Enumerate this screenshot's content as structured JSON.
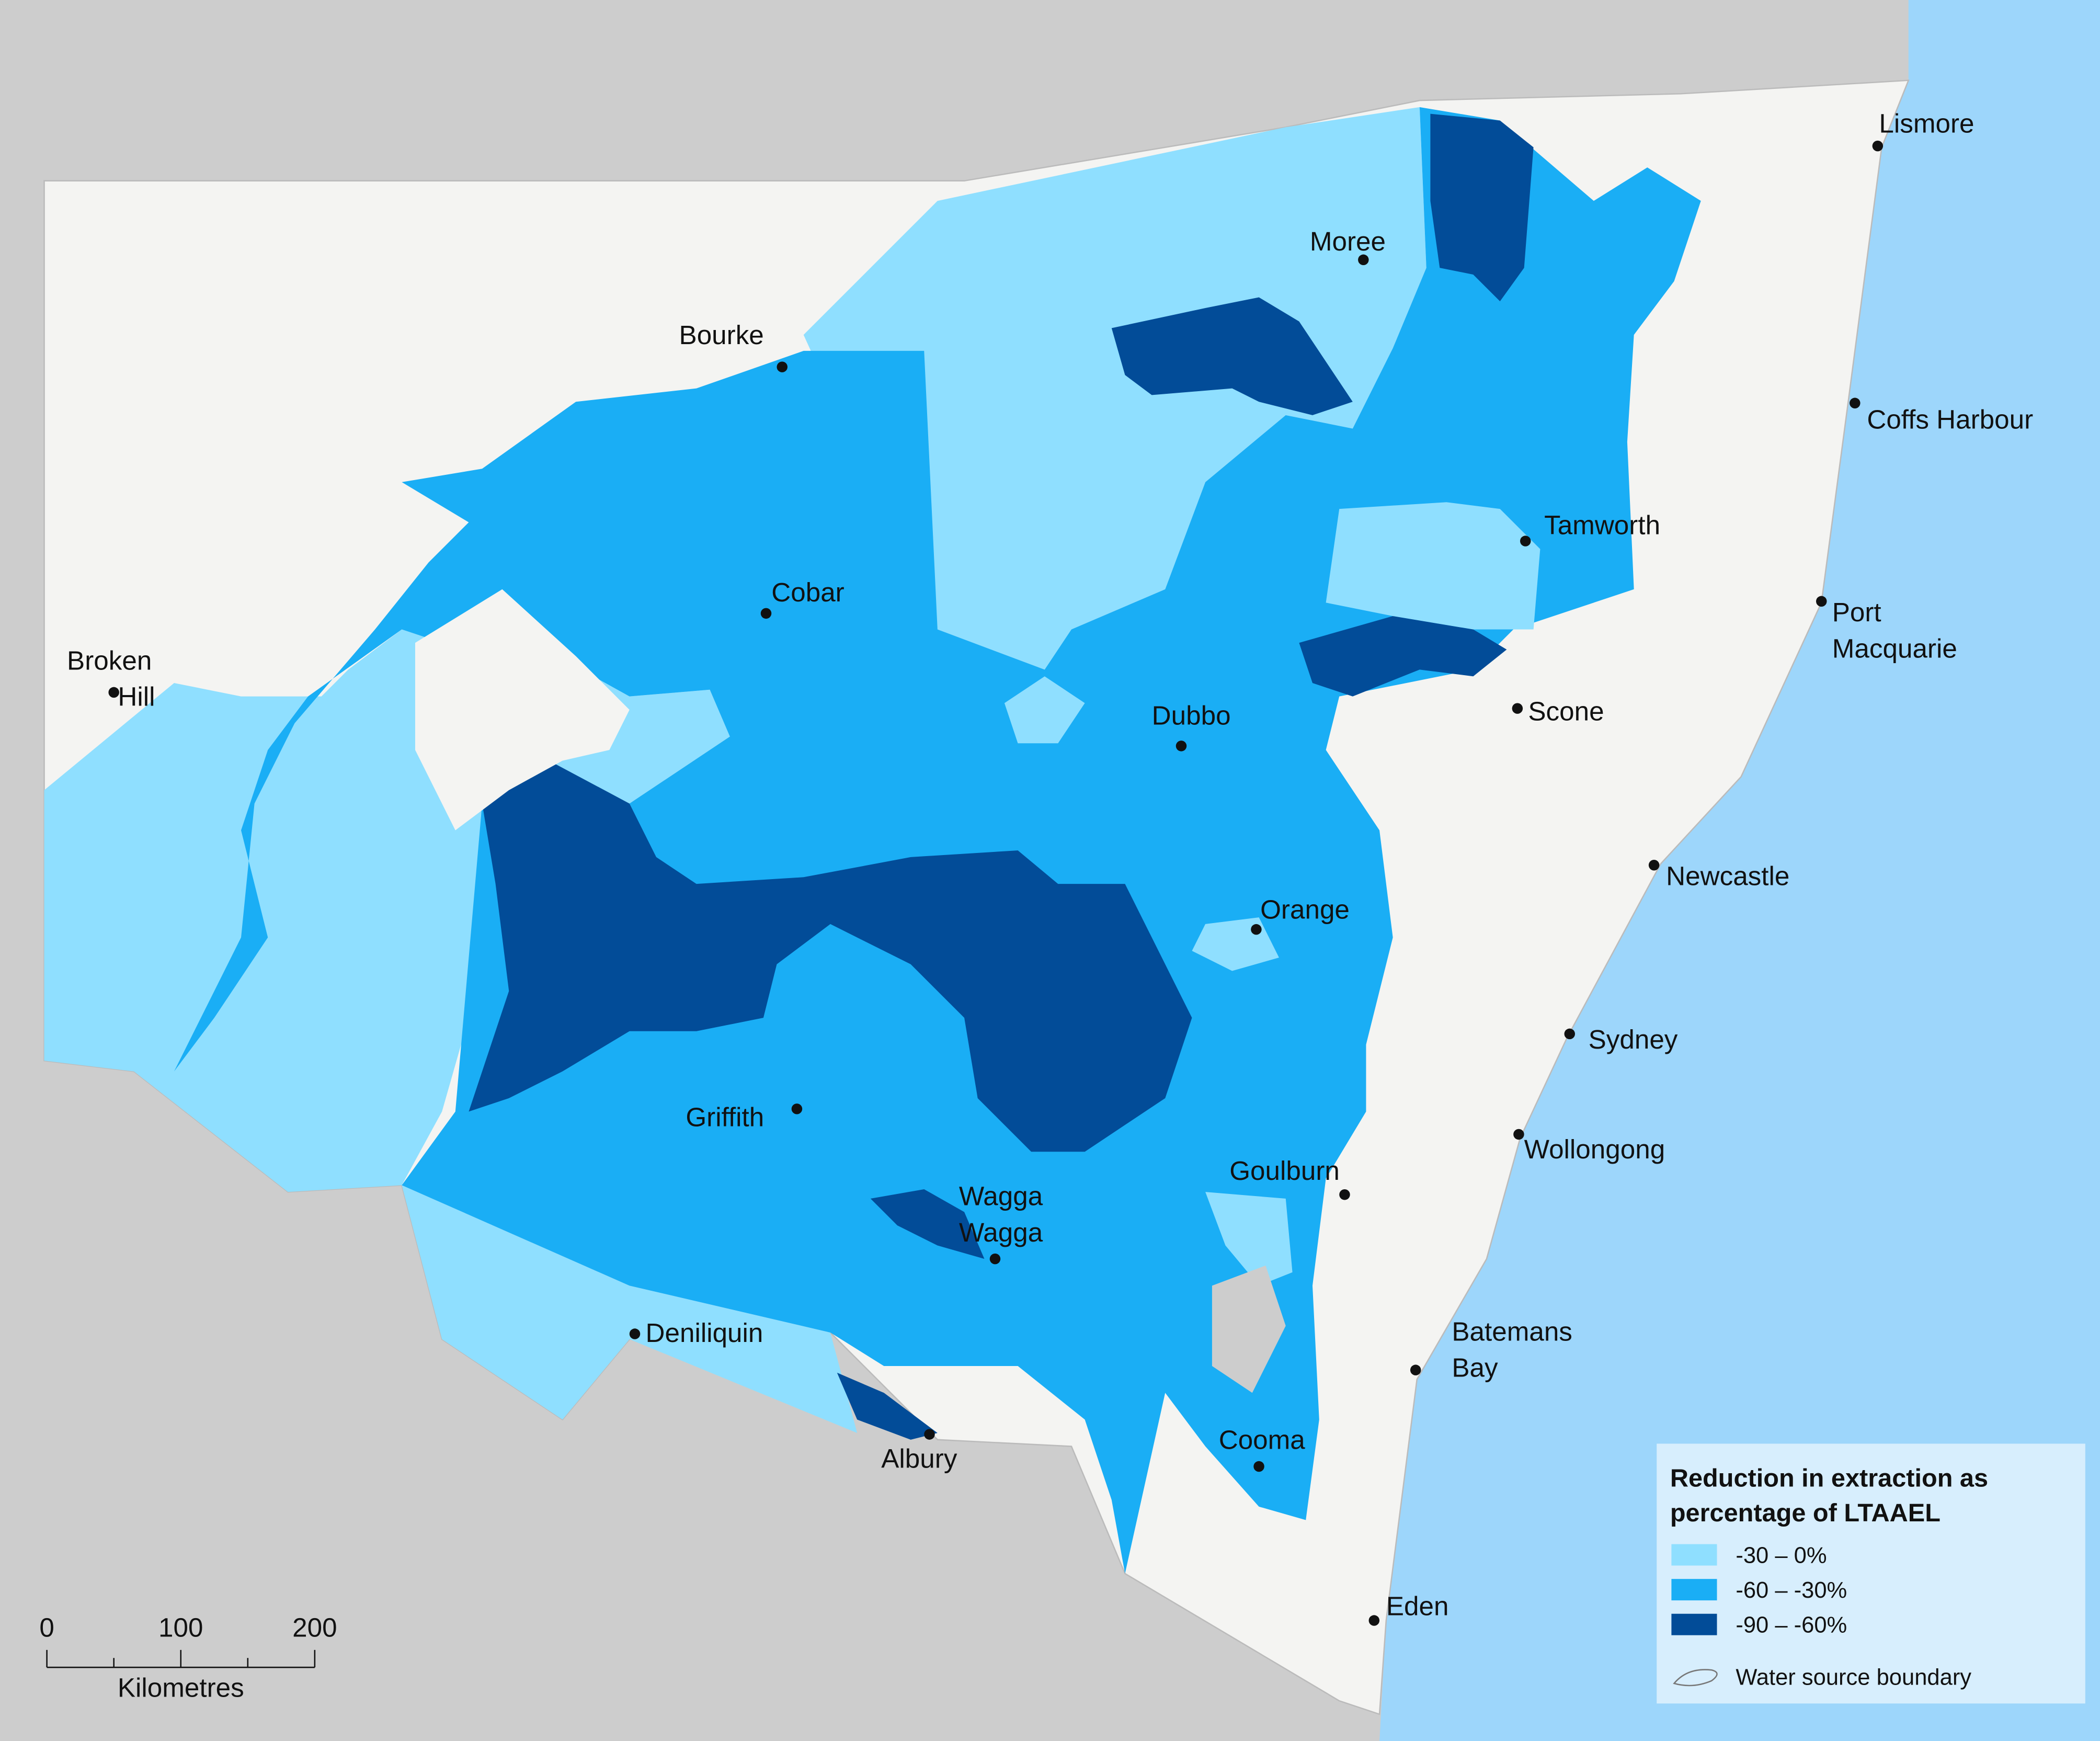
{
  "map": {
    "cities": [
      {
        "lines": [
          "Lismore"
        ]
      },
      {
        "lines": [
          "Coffs Harbour"
        ]
      },
      {
        "lines": [
          "Port",
          "Macquarie"
        ]
      },
      {
        "lines": [
          "Tamworth"
        ]
      },
      {
        "lines": [
          "Scone"
        ]
      },
      {
        "lines": [
          "Newcastle"
        ]
      },
      {
        "lines": [
          "Sydney"
        ]
      },
      {
        "lines": [
          "Wollongong"
        ]
      },
      {
        "lines": [
          "Batemans",
          "Bay"
        ]
      },
      {
        "lines": [
          "Eden"
        ]
      },
      {
        "lines": [
          "Cooma"
        ]
      },
      {
        "lines": [
          "Goulburn"
        ]
      },
      {
        "lines": [
          "Albury"
        ]
      },
      {
        "lines": [
          "Deniliquin"
        ]
      },
      {
        "lines": [
          "Wagga",
          "Wagga"
        ]
      },
      {
        "lines": [
          "Griffith"
        ]
      },
      {
        "lines": [
          "Orange"
        ]
      },
      {
        "lines": [
          "Dubbo"
        ]
      },
      {
        "lines": [
          "Cobar"
        ]
      },
      {
        "lines": [
          "Bourke"
        ]
      },
      {
        "lines": [
          "Broken",
          "Hill"
        ]
      },
      {
        "lines": [
          "Moree"
        ]
      }
    ],
    "legend": {
      "title": [
        "Reduction in extraction as",
        "percentage of LTAAEL"
      ],
      "items": [
        {
          "label": "-30 – 0%",
          "color": "#8fdfff"
        },
        {
          "label": "-60 – -30%",
          "color": "#1aaef5"
        },
        {
          "label": "-90 – -60%",
          "color": "#024c98"
        }
      ],
      "boundary": "Water source boundary"
    },
    "scale_bar": {
      "ticks": [
        0,
        100,
        200
      ],
      "unit": "Kilometres"
    }
  }
}
